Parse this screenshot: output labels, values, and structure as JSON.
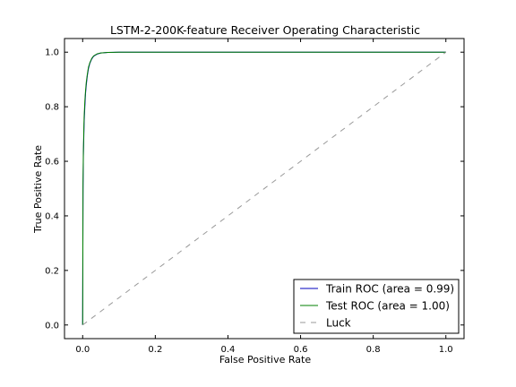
{
  "chart_data": {
    "type": "line",
    "title": "LSTM-2-200K-feature Receiver Operating Characteristic",
    "xlabel": "False Positive Rate",
    "ylabel": "True Positive Rate",
    "xlim": [
      -0.05,
      1.05
    ],
    "ylim": [
      -0.05,
      1.05
    ],
    "xticks": [
      "0.0",
      "0.2",
      "0.4",
      "0.6",
      "0.8",
      "1.0"
    ],
    "yticks": [
      "0.0",
      "0.2",
      "0.4",
      "0.6",
      "0.8",
      "1.0"
    ],
    "legend_position": "lower-right",
    "grid": false,
    "series": [
      {
        "name": "Train ROC (area = 0.99)",
        "color": "#0000bf",
        "style": "solid",
        "x": [
          0,
          0.001,
          0.002,
          0.004,
          0.006,
          0.008,
          0.01,
          0.013,
          0.016,
          0.02,
          0.025,
          0.03,
          0.04,
          0.05,
          0.07,
          0.1,
          0.2,
          0.4,
          0.6,
          0.8,
          1.0
        ],
        "y": [
          0,
          0.5,
          0.62,
          0.74,
          0.8,
          0.85,
          0.88,
          0.915,
          0.94,
          0.96,
          0.975,
          0.985,
          0.993,
          0.997,
          0.999,
          1.0,
          1.0,
          1.0,
          1.0,
          1.0,
          1.0
        ]
      },
      {
        "name": "Test ROC (area = 1.00)",
        "color": "#007f00",
        "style": "solid",
        "x": [
          0,
          0.001,
          0.002,
          0.004,
          0.006,
          0.008,
          0.01,
          0.013,
          0.016,
          0.02,
          0.025,
          0.03,
          0.04,
          0.05,
          0.07,
          0.1,
          0.2,
          0.4,
          0.6,
          0.8,
          1.0
        ],
        "y": [
          0,
          0.52,
          0.64,
          0.76,
          0.82,
          0.86,
          0.89,
          0.92,
          0.945,
          0.962,
          0.977,
          0.986,
          0.994,
          0.997,
          0.999,
          1.0,
          1.0,
          1.0,
          1.0,
          1.0,
          1.0
        ]
      },
      {
        "name": "Luck",
        "color": "#999999",
        "style": "dashed",
        "x": [
          0,
          1
        ],
        "y": [
          0,
          1
        ]
      }
    ]
  }
}
